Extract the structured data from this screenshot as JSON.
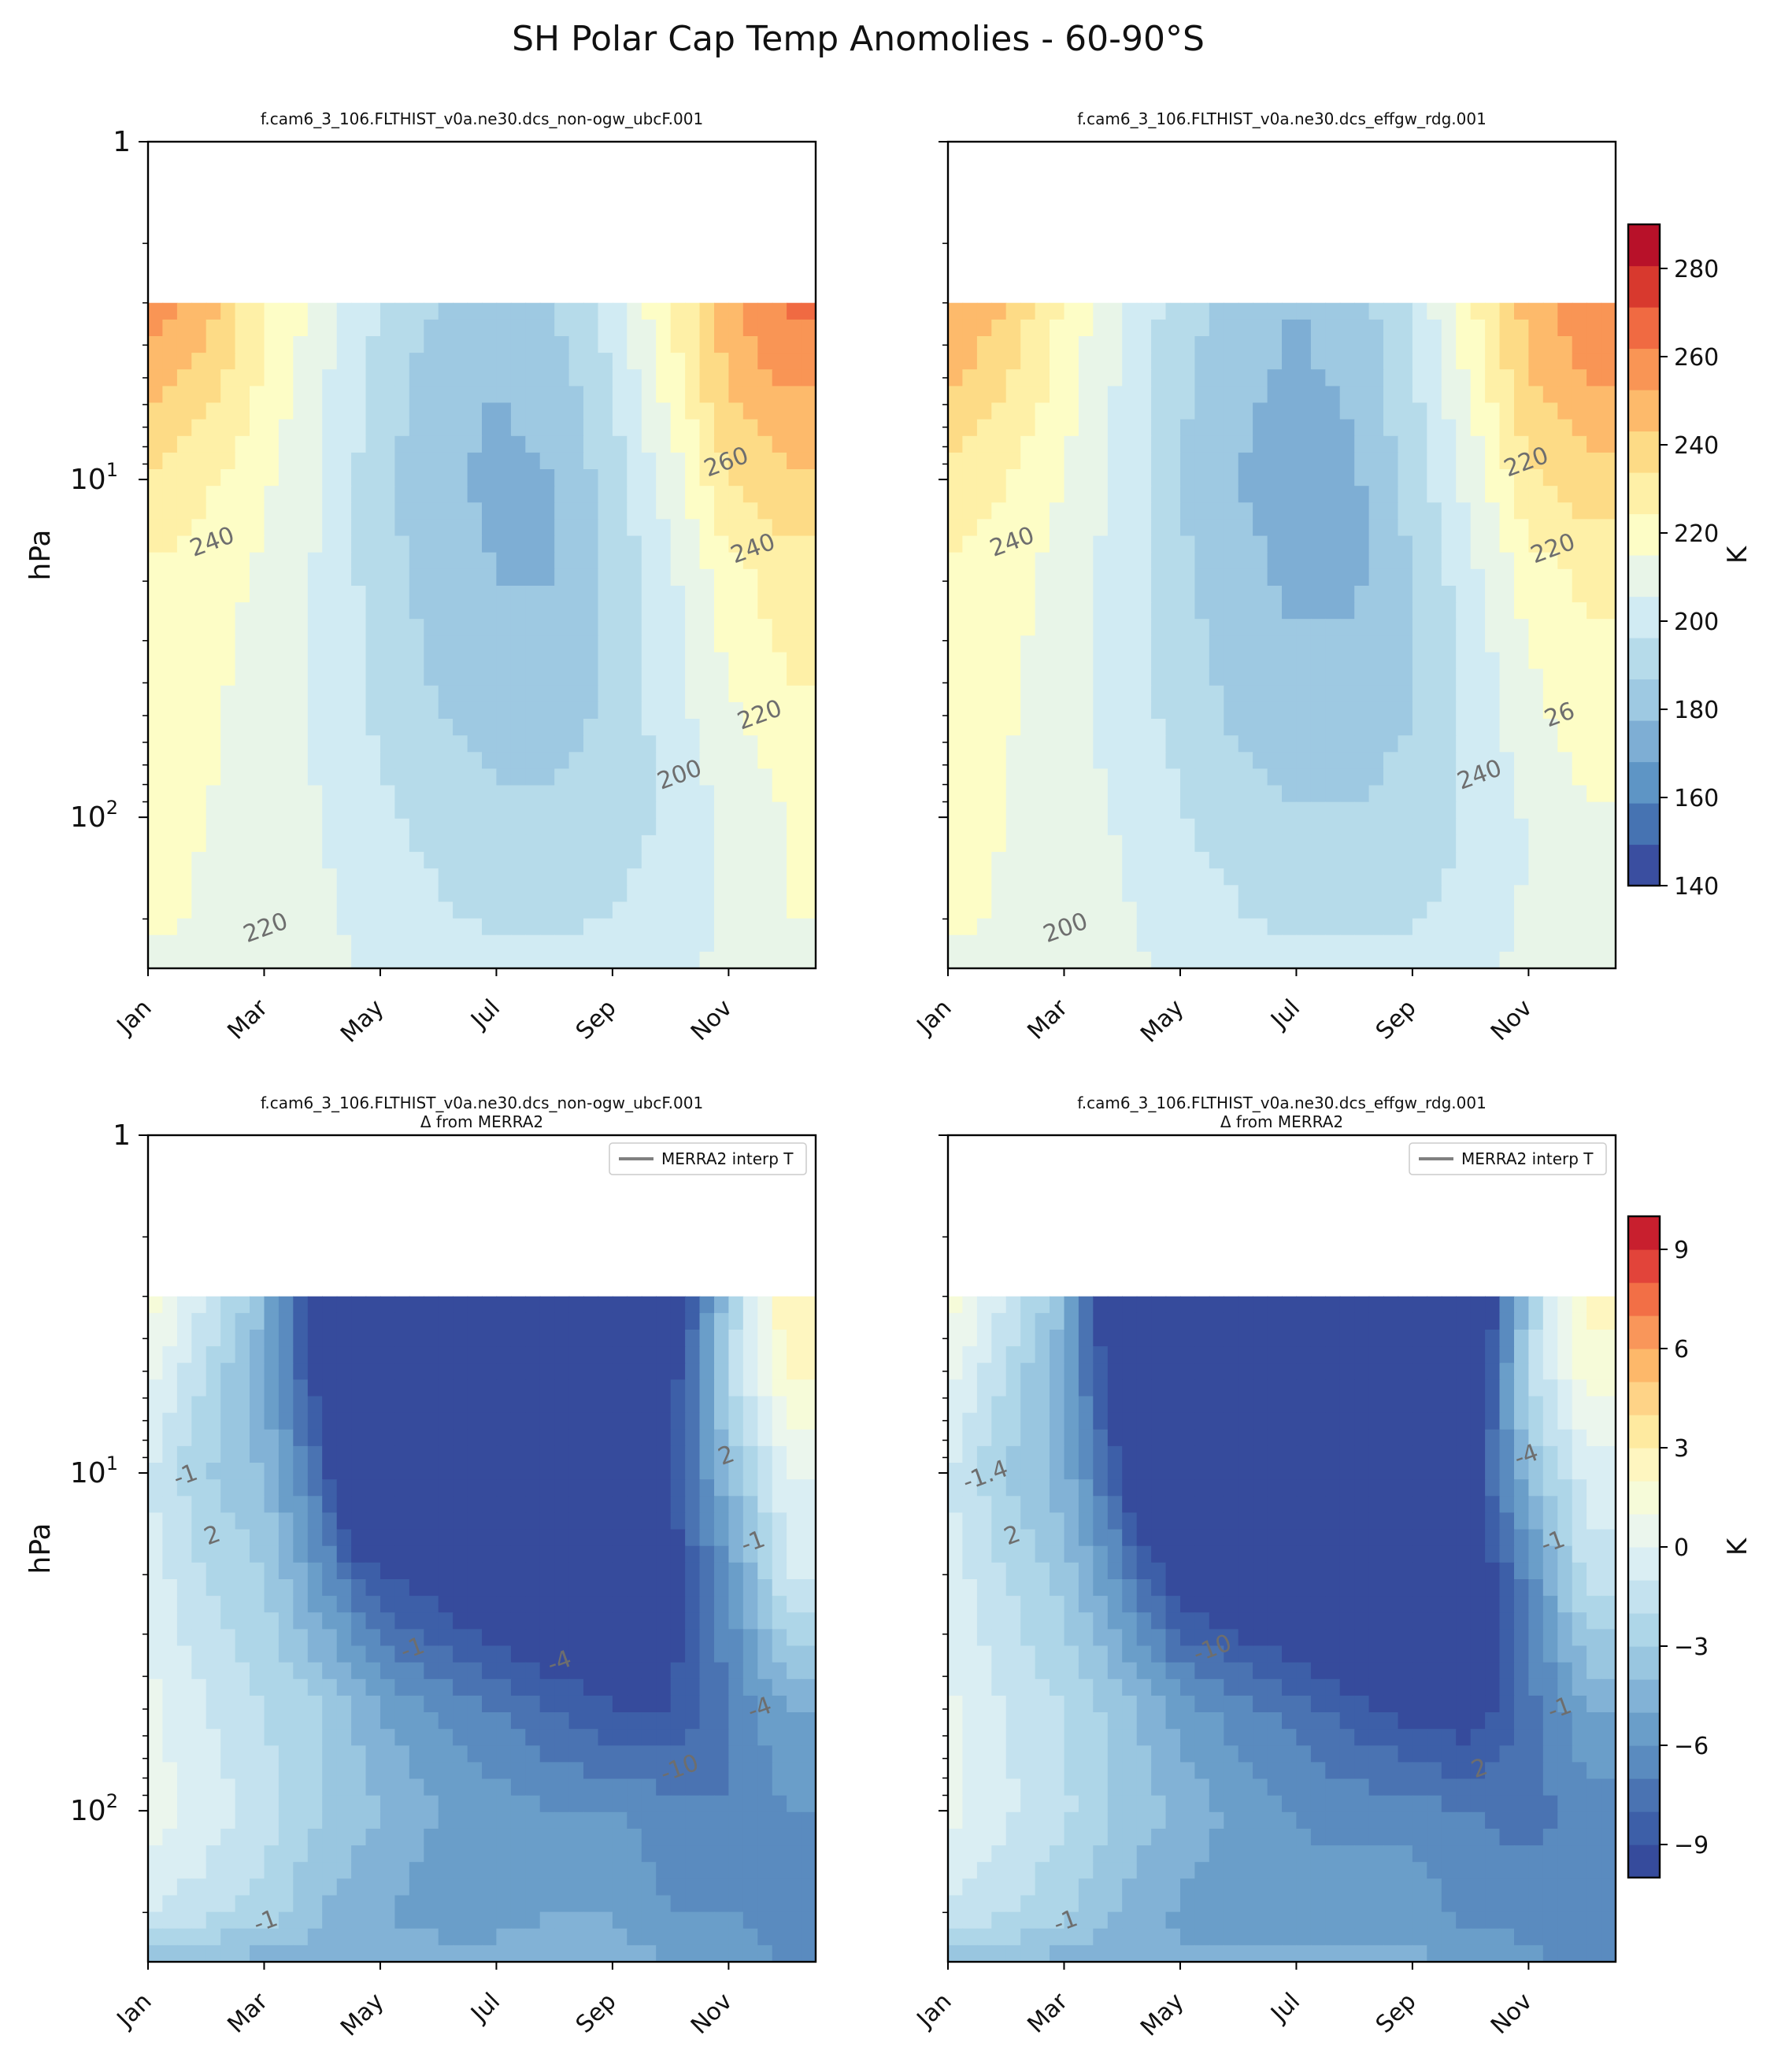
{
  "figure": {
    "suptitle": "SH Polar Cap Temp Anomolies - 60-90°S"
  },
  "axes_common": {
    "xticks": [
      "Jan",
      "Mar",
      "May",
      "Jul",
      "Sep",
      "Nov"
    ],
    "yticks": [
      {
        "label": "1"
      },
      {
        "label": "10",
        "sup": "1"
      },
      {
        "label": "10",
        "sup": "2"
      }
    ],
    "ylabel": "hPa",
    "ylim": [
      1,
      280
    ],
    "model_top_hPa": 3
  },
  "colorbars": {
    "abs": {
      "label": "K",
      "range": [
        140,
        290
      ],
      "step": 10,
      "ticks": [
        "140",
        "160",
        "180",
        "200",
        "220",
        "240",
        "260",
        "280"
      ],
      "colors": [
        "#3a4ea0",
        "#4673b2",
        "#5e95c5",
        "#7eaed4",
        "#9ec9e2",
        "#b6dbea",
        "#d1ebf3",
        "#e8f5e8",
        "#fdfdc6",
        "#fef0a7",
        "#fddb86",
        "#fdba6b",
        "#f99555",
        "#f06a42",
        "#d8392e",
        "#b81129"
      ]
    },
    "delta": {
      "label": "K",
      "range": [
        -10,
        10
      ],
      "step": 1,
      "ticks": [
        "−9",
        "−6",
        "−3",
        "0",
        "3",
        "6",
        "9"
      ],
      "colors": [
        "#364b9c",
        "#3d5fa8",
        "#4a73b2",
        "#5a8bbf",
        "#6a9ec9",
        "#82b2d6",
        "#99c6e0",
        "#aed6e8",
        "#c4e2ef",
        "#daeef3",
        "#ebf6ed",
        "#f6fbd9",
        "#fef6c0",
        "#feeaa0",
        "#fed387",
        "#fdb86a",
        "#f9965a",
        "#f26f46",
        "#e2443a",
        "#c81f2e"
      ]
    }
  },
  "chart_data": [
    {
      "id": "abs-nonogw",
      "type": "heatmap",
      "title": "f.cam6_3_106.FLTHIST_v0a.ne30.dcs_non-ogw_ubcF.001",
      "subtitle": "",
      "xlabel": "",
      "ylabel": "hPa",
      "colorbar_label": "K",
      "x_months": [
        1,
        2,
        3,
        4,
        5,
        6,
        7,
        8,
        9,
        10,
        11,
        12
      ],
      "p_levels_hPa": [
        3,
        5,
        10,
        20,
        50,
        100,
        200,
        280
      ],
      "values_K": [
        [
          265,
          255,
          232,
          215,
          200,
          190,
          185,
          190,
          205,
          230,
          258,
          272
        ],
        [
          255,
          245,
          228,
          212,
          195,
          185,
          180,
          185,
          200,
          225,
          252,
          262
        ],
        [
          240,
          232,
          222,
          210,
          193,
          182,
          178,
          180,
          195,
          215,
          240,
          248
        ],
        [
          228,
          225,
          218,
          208,
          195,
          185,
          180,
          180,
          192,
          208,
          226,
          235
        ],
        [
          225,
          222,
          215,
          208,
          198,
          190,
          186,
          186,
          192,
          205,
          218,
          228
        ],
        [
          223,
          220,
          215,
          210,
          202,
          196,
          192,
          192,
          195,
          202,
          212,
          220
        ],
        [
          222,
          219,
          215,
          212,
          206,
          202,
          198,
          198,
          200,
          205,
          212,
          220
        ],
        [
          218,
          216,
          214,
          212,
          208,
          206,
          205,
          205,
          206,
          208,
          212,
          216
        ]
      ],
      "contour_labels": [
        "240",
        "220",
        "200",
        "260",
        "240",
        "220"
      ]
    },
    {
      "id": "abs-effgw",
      "type": "heatmap",
      "title": "f.cam6_3_106.FLTHIST_v0a.ne30.dcs_effgw_rdg.001",
      "subtitle": "",
      "xlabel": "",
      "ylabel": "",
      "colorbar_label": "K",
      "x_months": [
        1,
        2,
        3,
        4,
        5,
        6,
        7,
        8,
        9,
        10,
        11,
        12
      ],
      "p_levels_hPa": [
        3,
        5,
        10,
        20,
        50,
        100,
        200,
        280
      ],
      "values_K": [
        [
          262,
          250,
          228,
          210,
          195,
          185,
          180,
          185,
          200,
          228,
          255,
          268
        ],
        [
          252,
          242,
          225,
          208,
          192,
          182,
          178,
          182,
          198,
          222,
          250,
          260
        ],
        [
          238,
          230,
          220,
          206,
          190,
          180,
          176,
          178,
          194,
          214,
          238,
          245
        ],
        [
          228,
          224,
          216,
          205,
          192,
          183,
          178,
          178,
          190,
          206,
          224,
          232
        ],
        [
          225,
          221,
          214,
          206,
          196,
          188,
          184,
          184,
          190,
          203,
          216,
          226
        ],
        [
          223,
          220,
          214,
          209,
          201,
          195,
          191,
          191,
          194,
          201,
          211,
          219
        ],
        [
          222,
          219,
          215,
          211,
          205,
          201,
          197,
          197,
          199,
          204,
          211,
          219
        ],
        [
          218,
          216,
          214,
          212,
          208,
          206,
          205,
          205,
          206,
          208,
          212,
          216
        ]
      ],
      "contour_labels": [
        "240",
        "200",
        "240",
        "220",
        "220",
        "26"
      ]
    },
    {
      "id": "delta-nonogw",
      "type": "heatmap",
      "title": "f.cam6_3_106.FLTHIST_v0a.ne30.dcs_non-ogw_ubcF.001",
      "subtitle": "Δ from MERRA2",
      "xlabel": "",
      "ylabel": "hPa",
      "colorbar_label": "K",
      "legend": {
        "entry": "MERRA2 interp T",
        "position": "top-right"
      },
      "x_months": [
        1,
        2,
        3,
        4,
        5,
        6,
        7,
        8,
        9,
        10,
        11,
        12
      ],
      "p_levels_hPa": [
        3,
        5,
        10,
        20,
        50,
        100,
        200,
        280
      ],
      "values_K": [
        [
          1.5,
          -1,
          -4,
          -12,
          -25,
          -30,
          -30,
          -28,
          -25,
          -12,
          -3,
          3
        ],
        [
          0.5,
          -2,
          -5,
          -10,
          -22,
          -28,
          -28,
          -26,
          -22,
          -10,
          -2,
          2
        ],
        [
          -1,
          -3,
          -4,
          -8,
          -18,
          -24,
          -25,
          -22,
          -18,
          -9,
          -4,
          0
        ],
        [
          -0.5,
          -2,
          -3,
          -6,
          -9,
          -10,
          -11,
          -12,
          -12,
          -10,
          -6,
          -1
        ],
        [
          0.3,
          -1,
          -2,
          -3,
          -5,
          -6,
          -7,
          -8,
          -9,
          -9,
          -7,
          -5
        ],
        [
          0.5,
          -0.5,
          -1.5,
          -3,
          -4,
          -5,
          -5.5,
          -6,
          -6,
          -6.5,
          -7,
          -6
        ],
        [
          -1,
          -1.5,
          -2.5,
          -4,
          -5,
          -5.5,
          -5.5,
          -5,
          -5,
          -6,
          -6,
          -6.5
        ],
        [
          -4,
          -4,
          -4.5,
          -4.5,
          -4.5,
          -4.5,
          -4.5,
          -4.5,
          -4.5,
          -5,
          -5.5,
          -6
        ]
      ],
      "contour_labels": [
        "2",
        "-1",
        "-10",
        "2",
        "-1",
        "-4",
        "-1",
        "-1",
        "-4"
      ]
    },
    {
      "id": "delta-effgw",
      "type": "heatmap",
      "title": "f.cam6_3_106.FLTHIST_v0a.ne30.dcs_effgw_rdg.001",
      "subtitle": "Δ from MERRA2",
      "xlabel": "",
      "ylabel": "",
      "colorbar_label": "K",
      "legend": {
        "entry": "MERRA2 interp T",
        "position": "top-right"
      },
      "x_months": [
        1,
        2,
        3,
        4,
        5,
        6,
        7,
        8,
        9,
        10,
        11,
        12
      ],
      "p_levels_hPa": [
        3,
        5,
        10,
        20,
        50,
        100,
        200,
        280
      ],
      "values_K": [
        [
          1.5,
          -1,
          -4,
          -13,
          -28,
          -34,
          -34,
          -32,
          -28,
          -14,
          -3,
          2.5
        ],
        [
          0.5,
          -2,
          -5,
          -11,
          -25,
          -32,
          -32,
          -30,
          -25,
          -12,
          -2,
          1.5
        ],
        [
          -1,
          -3,
          -4.5,
          -9,
          -20,
          -28,
          -28,
          -26,
          -20,
          -10,
          -4,
          -0.5
        ],
        [
          -0.5,
          -2,
          -3.5,
          -6.5,
          -10,
          -11,
          -12,
          -13,
          -13,
          -11,
          -6.5,
          -1.5
        ],
        [
          0.2,
          -1,
          -2,
          -3.5,
          -5.5,
          -6.5,
          -7.5,
          -8.5,
          -9.5,
          -10,
          -7.5,
          -5
        ],
        [
          0.3,
          -0.8,
          -1.8,
          -3.2,
          -4.3,
          -5.3,
          -6,
          -6.5,
          -6.5,
          -7,
          -7.5,
          -6.5
        ],
        [
          -1.2,
          -1.8,
          -2.8,
          -4.2,
          -5.2,
          -5.8,
          -5.8,
          -5.3,
          -5.3,
          -6.3,
          -6.3,
          -7
        ],
        [
          -4,
          -4,
          -4.5,
          -4.8,
          -4.8,
          -4.8,
          -4.8,
          -4.8,
          -4.8,
          -5.2,
          -5.8,
          -6.2
        ]
      ],
      "contour_labels": [
        "2",
        "-1",
        "2",
        "-4",
        "-1",
        "-1",
        "-1.4",
        "-10"
      ]
    }
  ]
}
